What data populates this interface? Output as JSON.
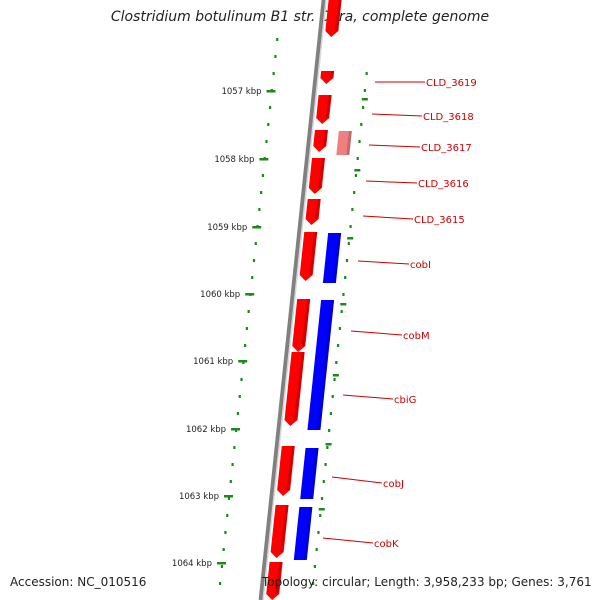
{
  "title": "Clostridium botulinum B1 str. Okra, complete genome",
  "footer": {
    "accession": "Accession: NC_010516",
    "summary": "Topology: circular; Length: 3,958,233 bp; Genes: 3,761"
  },
  "colors": {
    "forward_cds": "#ff0000",
    "reverse_cds": "#0000ff",
    "faded_cds": "#f08080",
    "label": "#cc0000",
    "axis_ticks": "#1a8a1a",
    "backbone": "#808080"
  },
  "ticks": [
    "1057 kbp",
    "1058 kbp",
    "1059 kbp",
    "1060 kbp",
    "1061 kbp",
    "1062 kbp",
    "1063 kbp",
    "1064 kbp"
  ],
  "gene_labels": [
    "CLD_3619",
    "CLD_3618",
    "CLD_3617",
    "CLD_3616",
    "CLD_3615",
    "cobI",
    "cobM",
    "cbiG",
    "cobJ",
    "cobK"
  ]
}
